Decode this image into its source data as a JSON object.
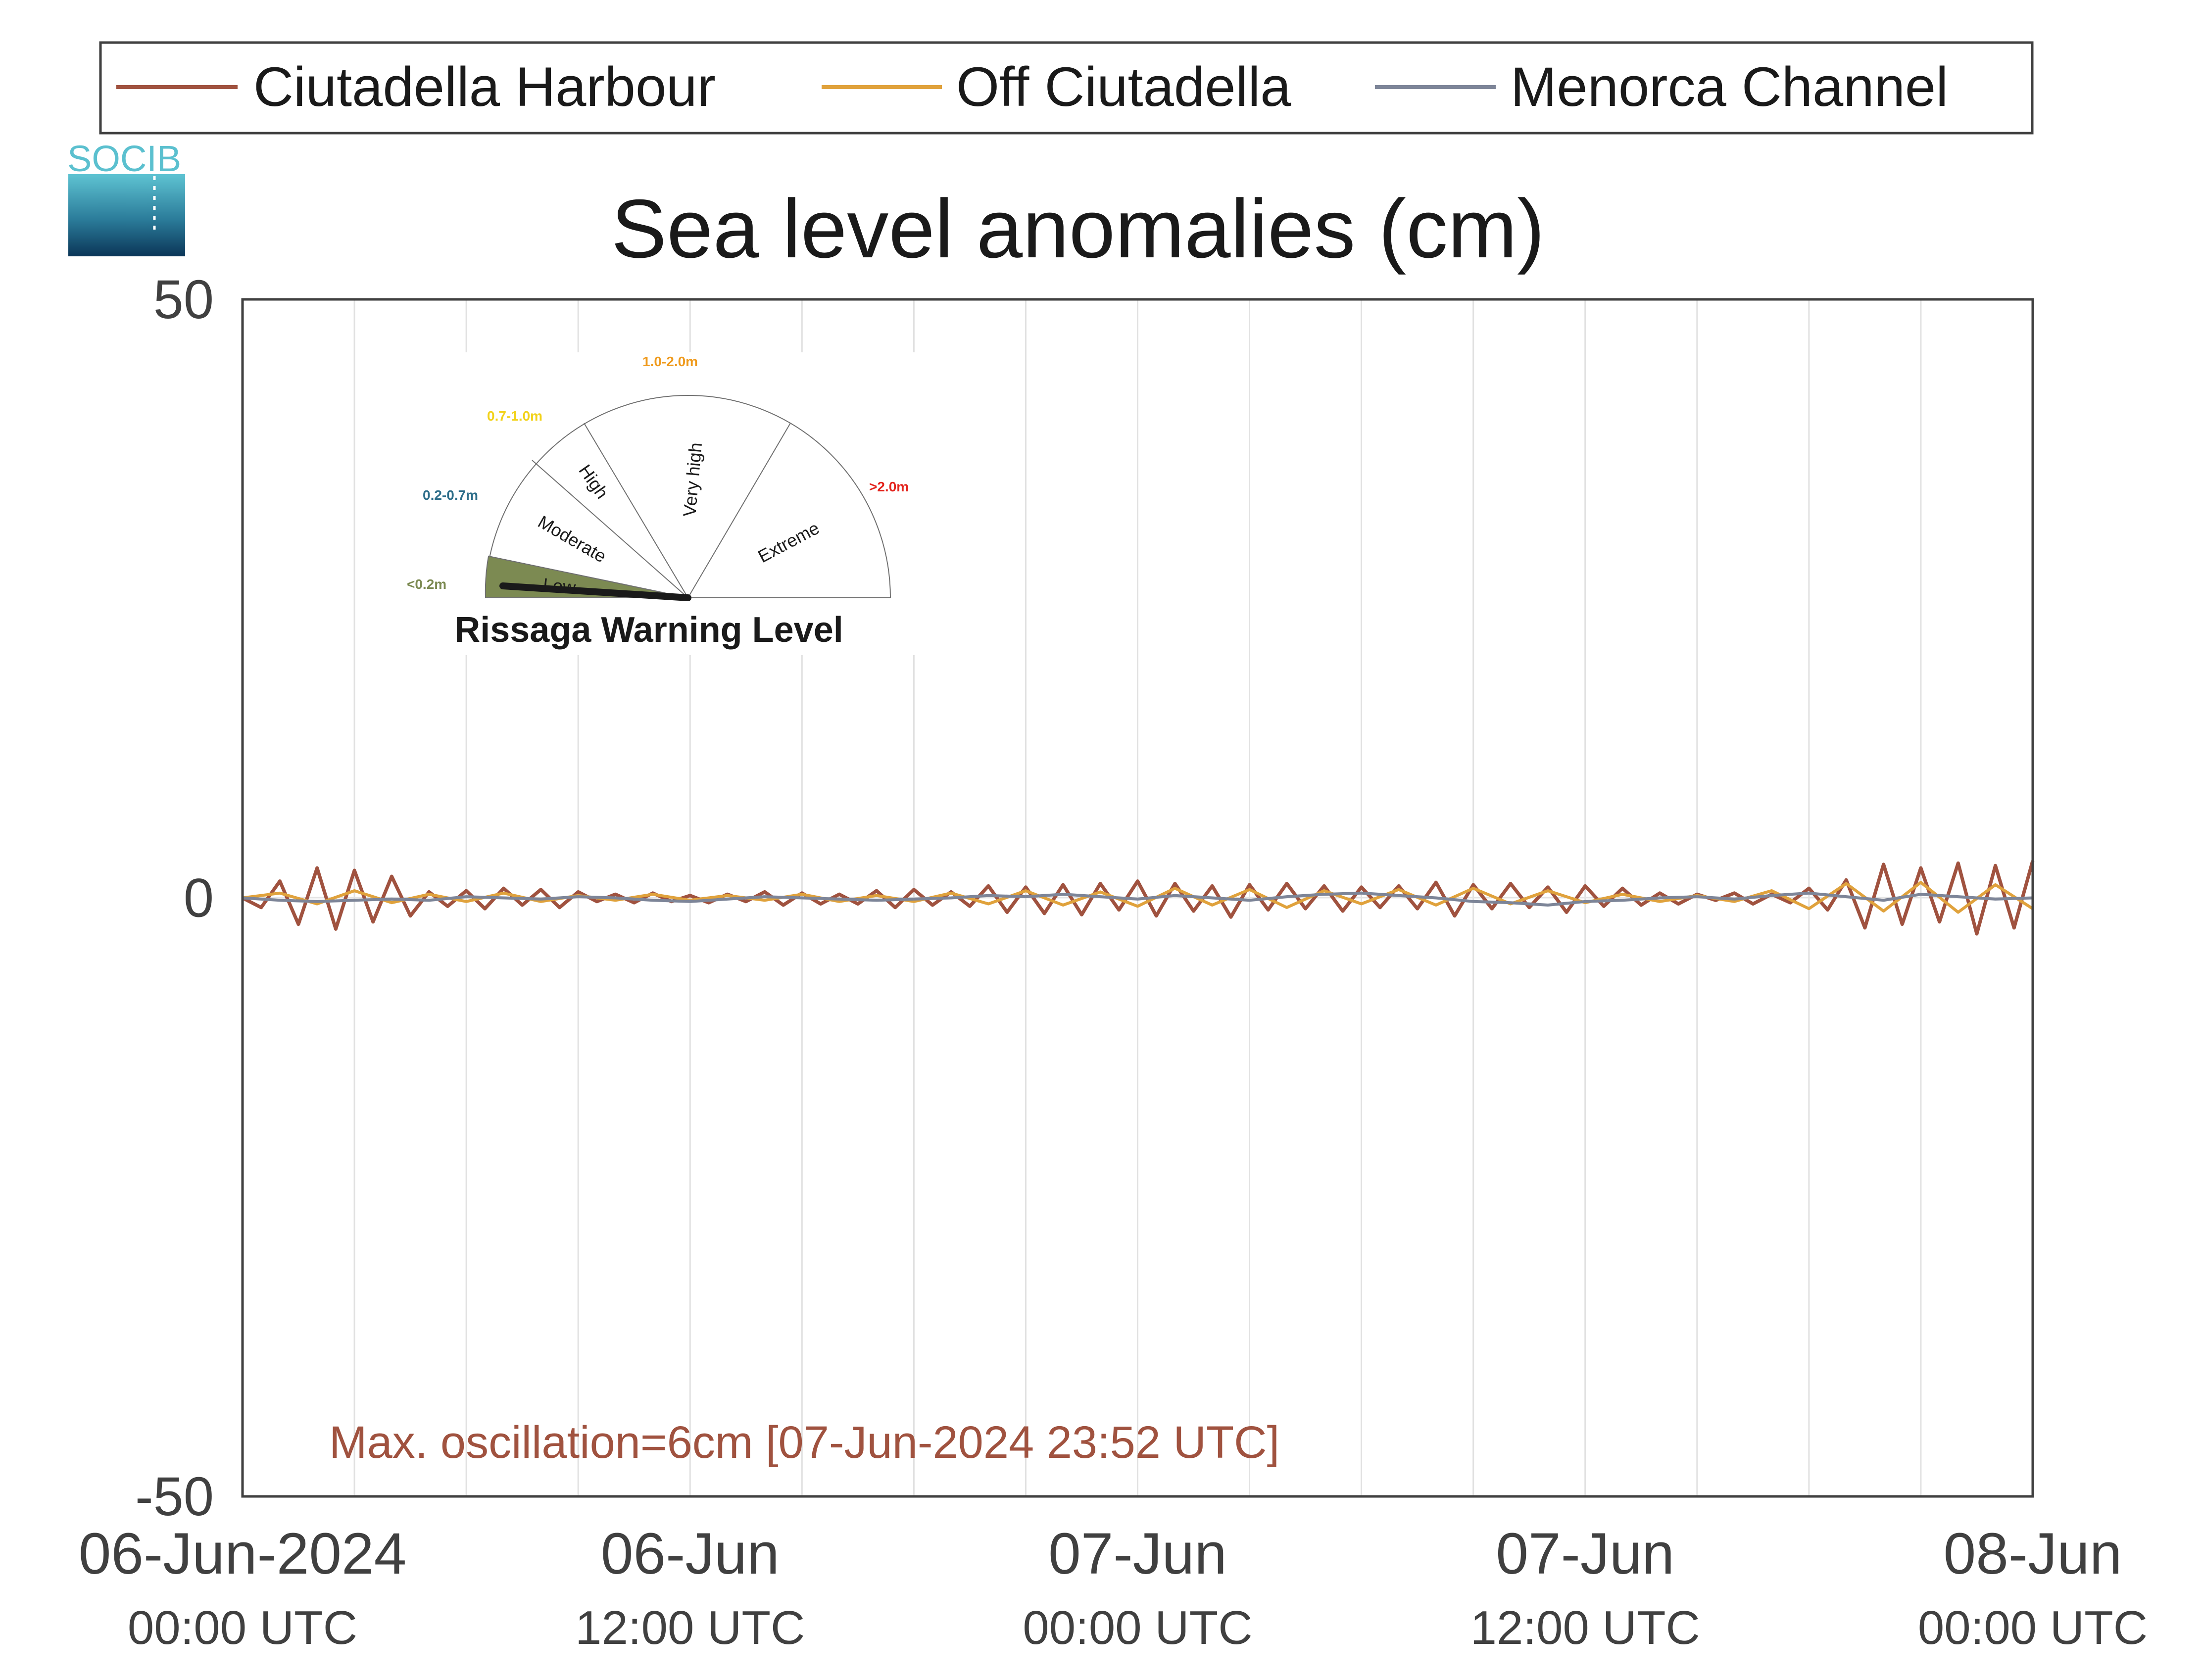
{
  "legend": {
    "items": [
      {
        "label": "Ciutadella Harbour",
        "color": "#a0523f"
      },
      {
        "label": "Off Ciutadella",
        "color": "#e0a23c"
      },
      {
        "label": "Menorca Channel",
        "color": "#7d8598"
      }
    ]
  },
  "logo": {
    "text": "SOCIB",
    "color": "#5bc0cf"
  },
  "annotation": {
    "text": "Max. oscillation=6cm [07-Jun-2024 23:52 UTC]",
    "color": "#a0523f"
  },
  "gauge": {
    "title": "Rissaga Warning Level",
    "current_level": "Low",
    "levels": [
      {
        "name": "Low",
        "range": "<0.2m",
        "color": "#7c8a52"
      },
      {
        "name": "Moderate",
        "range": "0.2-0.7m",
        "color": "#2e6e8a"
      },
      {
        "name": "High",
        "range": "0.7-1.0m",
        "color": "#f2d21a"
      },
      {
        "name": "Very high",
        "range": "1.0-2.0m",
        "color": "#ef9a1c"
      },
      {
        "name": "Extreme",
        "range": ">2.0m",
        "color": "#e3231c"
      }
    ]
  },
  "chart_data": {
    "type": "line",
    "title": "Sea level anomalies (cm)",
    "xlabel": "",
    "ylabel": "",
    "ylim": [
      -50,
      50
    ],
    "yticks": [
      50,
      0,
      -50
    ],
    "ytick_labels": [
      "50",
      "0",
      "-50"
    ],
    "x_unit": "hours since 06-Jun-2024 00:00 UTC",
    "xlim": [
      0,
      48
    ],
    "xticks": [
      {
        "date": "06-Jun-2024",
        "time": "00:00 UTC"
      },
      {
        "date": "06-Jun",
        "time": "12:00 UTC"
      },
      {
        "date": "07-Jun",
        "time": "00:00 UTC"
      },
      {
        "date": "07-Jun",
        "time": "12:00 UTC"
      },
      {
        "date": "08-Jun",
        "time": "00:00 UTC"
      }
    ],
    "grid": "vertical",
    "legend_position": "top",
    "series": [
      {
        "name": "Ciutadella Harbour",
        "x": [
          0,
          0.5,
          1,
          1.5,
          2,
          2.5,
          3,
          3.5,
          4,
          4.5,
          5,
          5.5,
          6,
          6.5,
          7,
          7.5,
          8,
          8.5,
          9,
          9.5,
          10,
          10.5,
          11,
          11.5,
          12,
          12.5,
          13,
          13.5,
          14,
          14.5,
          15,
          15.5,
          16,
          16.5,
          17,
          17.5,
          18,
          18.5,
          19,
          19.5,
          20,
          20.5,
          21,
          21.5,
          22,
          22.5,
          23,
          23.5,
          24,
          24.5,
          25,
          25.5,
          26,
          26.5,
          27,
          27.5,
          28,
          28.5,
          29,
          29.5,
          30,
          30.5,
          31,
          31.5,
          32,
          32.5,
          33,
          33.5,
          34,
          34.5,
          35,
          35.5,
          36,
          36.5,
          37,
          37.5,
          38,
          38.5,
          39,
          39.5,
          40,
          40.5,
          41,
          41.5,
          42,
          42.5,
          43,
          43.5,
          44,
          44.5,
          45,
          45.5,
          46,
          46.5,
          47,
          47.5,
          48
        ],
        "y": [
          0,
          -0.8,
          1.4,
          -2.2,
          2.5,
          -2.6,
          2.3,
          -2.0,
          1.8,
          -1.5,
          0.5,
          -0.7,
          0.6,
          -0.9,
          0.8,
          -0.6,
          0.7,
          -0.8,
          0.5,
          -0.3,
          0.3,
          -0.4,
          0.4,
          -0.3,
          0.2,
          -0.4,
          0.3,
          -0.3,
          0.5,
          -0.6,
          0.4,
          -0.5,
          0.3,
          -0.5,
          0.6,
          -0.8,
          0.7,
          -0.6,
          0.5,
          -0.7,
          1.0,
          -1.2,
          0.9,
          -1.3,
          1.1,
          -1.4,
          1.2,
          -1.0,
          1.4,
          -1.5,
          1.2,
          -1.1,
          1.0,
          -1.6,
          1.1,
          -1.0,
          1.2,
          -0.9,
          1.0,
          -1.1,
          0.9,
          -0.8,
          1.0,
          -0.9,
          1.3,
          -1.5,
          1.1,
          -0.9,
          1.2,
          -0.8,
          0.9,
          -1.2,
          1.0,
          -0.7,
          0.8,
          -0.6,
          0.4,
          -0.5,
          0.3,
          -0.2,
          0.4,
          -0.5,
          0.3,
          -0.4,
          0.8,
          -1.0,
          1.5,
          -2.5,
          2.8,
          -2.2,
          2.5,
          -2.0,
          2.9,
          -3.0,
          2.7,
          -2.5,
          3.1
        ]
      },
      {
        "name": "Off Ciutadella",
        "x": [
          0,
          1,
          2,
          3,
          4,
          5,
          6,
          7,
          8,
          9,
          10,
          11,
          12,
          13,
          14,
          15,
          16,
          17,
          18,
          19,
          20,
          21,
          22,
          23,
          24,
          25,
          26,
          27,
          28,
          29,
          30,
          31,
          32,
          33,
          34,
          35,
          36,
          37,
          38,
          39,
          40,
          41,
          42,
          43,
          44,
          45,
          46,
          47,
          48
        ],
        "y": [
          0,
          0.4,
          -0.5,
          0.6,
          -0.4,
          0.3,
          -0.3,
          0.4,
          -0.3,
          0.2,
          -0.2,
          0.3,
          -0.2,
          0.2,
          -0.2,
          0.3,
          -0.3,
          0.2,
          -0.3,
          0.4,
          -0.5,
          0.6,
          -0.6,
          0.5,
          -0.7,
          0.8,
          -0.6,
          0.7,
          -0.8,
          0.6,
          -0.5,
          0.7,
          -0.6,
          0.8,
          -0.5,
          0.6,
          -0.4,
          0.3,
          -0.3,
          0.2,
          -0.3,
          0.6,
          -0.9,
          1.2,
          -1.1,
          1.3,
          -1.2,
          1.1,
          -0.9
        ]
      },
      {
        "name": "Menorca Channel",
        "x": [
          0,
          1,
          2,
          3,
          4,
          5,
          6,
          7,
          8,
          9,
          10,
          11,
          12,
          13,
          14,
          15,
          16,
          17,
          18,
          19,
          20,
          21,
          22,
          23,
          24,
          25,
          26,
          27,
          28,
          29,
          30,
          31,
          32,
          33,
          34,
          35,
          36,
          37,
          38,
          39,
          40,
          41,
          42,
          43,
          44,
          45,
          46,
          47,
          48
        ],
        "y": [
          0,
          -0.2,
          -0.3,
          -0.2,
          -0.1,
          -0.2,
          0.1,
          0,
          -0.1,
          0.1,
          0,
          -0.2,
          -0.3,
          -0.1,
          0.1,
          0,
          -0.1,
          -0.2,
          -0.1,
          0,
          0.2,
          0.1,
          0.3,
          0.1,
          -0.1,
          0.2,
          0,
          -0.2,
          0.1,
          0.3,
          0.4,
          0.2,
          0,
          -0.3,
          -0.4,
          -0.6,
          -0.3,
          -0.2,
          0,
          0.1,
          -0.1,
          0.2,
          0.4,
          0.1,
          -0.2,
          0.3,
          0.1,
          -0.1,
          0
        ]
      }
    ]
  }
}
